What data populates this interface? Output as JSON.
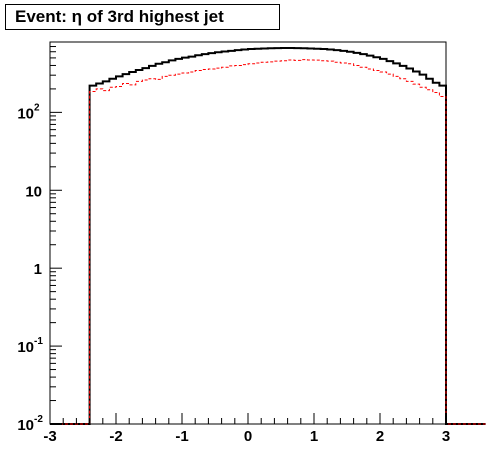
{
  "title": "Event: η of 3rd highest jet",
  "chart_data": {
    "type": "histogram",
    "title": "Event: η of 3rd highest jet",
    "xlabel": "",
    "ylabel": "",
    "xlim": [
      -3,
      3
    ],
    "ylim": [
      0.01,
      800
    ],
    "log_y": true,
    "grid": false,
    "x_ticks": [
      "-3",
      "-2",
      "-1",
      "0",
      "1",
      "2",
      "3"
    ],
    "y_ticks": [
      {
        "value": 0.01,
        "base": "10",
        "exp": "-2"
      },
      {
        "value": 0.1,
        "base": "10",
        "exp": "-1"
      },
      {
        "value": 1,
        "base": "1",
        "exp": ""
      },
      {
        "value": 10,
        "base": "10",
        "exp": ""
      },
      {
        "value": 100,
        "base": "10",
        "exp": "2"
      }
    ],
    "bin_edges_start": -3.0,
    "bin_width": 0.1,
    "series": [
      {
        "color": "#000000",
        "style": "solid",
        "values": [
          0.01,
          0.01,
          0.01,
          0.01,
          0.01,
          0.01,
          220,
          235,
          250,
          270,
          290,
          310,
          330,
          350,
          370,
          395,
          420,
          440,
          465,
          485,
          505,
          520,
          540,
          560,
          575,
          590,
          605,
          615,
          630,
          640,
          650,
          655,
          660,
          665,
          668,
          670,
          670,
          668,
          665,
          660,
          655,
          650,
          640,
          630,
          615,
          600,
          580,
          560,
          535,
          510,
          485,
          455,
          425,
          395,
          365,
          335,
          305,
          270,
          240,
          220,
          0.01,
          0.01,
          0.01,
          0.01,
          0.01,
          0.01
        ]
      },
      {
        "color": "#ff0000",
        "style": "dashed",
        "values": [
          0.01,
          0.01,
          0.01,
          0.01,
          0.01,
          0.01,
          185,
          200,
          190,
          210,
          215,
          235,
          225,
          250,
          260,
          270,
          265,
          290,
          300,
          310,
          320,
          330,
          345,
          355,
          360,
          370,
          380,
          395,
          400,
          410,
          420,
          430,
          440,
          445,
          455,
          460,
          470,
          465,
          475,
          470,
          468,
          460,
          455,
          440,
          430,
          420,
          400,
          380,
          360,
          345,
          330,
          310,
          290,
          270,
          250,
          230,
          210,
          195,
          180,
          160,
          0.01,
          0.01,
          0.01,
          0.01,
          0.01,
          0.01
        ]
      }
    ]
  }
}
